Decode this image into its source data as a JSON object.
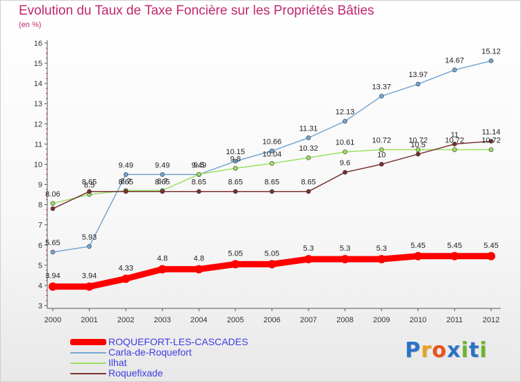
{
  "header": {
    "title": "Evolution du Taux de Taxe Foncière sur les Propriétés Bâties",
    "subtitle": "(en %)"
  },
  "logo": {
    "text": "Proxiti",
    "letters": [
      "P",
      "r",
      "o",
      "x",
      "i",
      "t",
      "i"
    ],
    "colors": [
      "#2b73c4",
      "#e8a21c",
      "#e8541c",
      "#2b73c4",
      "#6ab42d",
      "#2b73c4",
      "#6ab42d"
    ]
  },
  "colors": {
    "title": "#c0266e",
    "legend_text": "#3d3de0",
    "axis": "#555555",
    "grid": "#dddddd"
  },
  "chart_data": {
    "type": "line",
    "title": "Evolution du Taux de Taxe Foncière sur les Propriétés Bâties",
    "subtitle": "(en %)",
    "xlabel": "",
    "ylabel": "",
    "x": [
      "2000",
      "2001",
      "2002",
      "2003",
      "2004",
      "2005",
      "2006",
      "2007",
      "2008",
      "2009",
      "2010",
      "2011",
      "2012"
    ],
    "ylim": [
      3,
      16
    ],
    "yticks": [
      3,
      4,
      5,
      6,
      7,
      8,
      9,
      10,
      11,
      12,
      13,
      14,
      15,
      16
    ],
    "grid": false,
    "legend_position": "bottom-left",
    "series": [
      {
        "name": "ROQUEFORT-LES-CASCADES",
        "color": "#ff0000",
        "values": [
          3.94,
          3.94,
          4.33,
          4.8,
          4.8,
          5.05,
          5.05,
          5.3,
          5.3,
          5.3,
          5.45,
          5.45,
          5.45
        ],
        "labels": [
          "3.94",
          "3.94",
          "4.33",
          "4.8",
          "4.8",
          "5.05",
          "5.05",
          "5.3",
          "5.3",
          "5.3",
          "5.45",
          "5.45",
          "5.45"
        ]
      },
      {
        "name": "Carla-de-Roquefort",
        "color": "#74a6d4",
        "values": [
          5.65,
          5.93,
          9.49,
          9.49,
          9.49,
          10.15,
          10.66,
          11.31,
          12.13,
          13.37,
          13.97,
          14.67,
          15.12
        ],
        "labels": [
          "5.65",
          "5.93",
          "9.49",
          "9.49",
          "9.49",
          "10.15",
          "10.66",
          "11.31",
          "12.13",
          "13.37",
          "13.97",
          "14.67",
          "15.12"
        ]
      },
      {
        "name": "Ilhat",
        "color": "#9de062",
        "values": [
          8.06,
          8.5,
          8.7,
          8.7,
          9.5,
          9.8,
          10.04,
          10.32,
          10.61,
          10.72,
          10.72,
          10.72,
          10.72
        ],
        "labels": [
          "8.06",
          "8.5",
          "8.7",
          "8.7",
          "9.5",
          "9.8",
          "10.04",
          "10.32",
          "10.61",
          "10.72",
          "10.72",
          "10.72",
          "10.72"
        ]
      },
      {
        "name": "Roquefixade",
        "color": "#7a3030",
        "values": [
          7.8,
          8.65,
          8.65,
          8.65,
          8.65,
          8.65,
          8.65,
          8.65,
          9.6,
          10,
          10.5,
          11,
          11.14
        ],
        "labels": [
          "",
          "8.65",
          "8.65",
          "8.65",
          "8.65",
          "8.65",
          "8.65",
          "8.65",
          "9.6",
          "10",
          "10.5",
          "11",
          "11.14"
        ]
      }
    ]
  }
}
